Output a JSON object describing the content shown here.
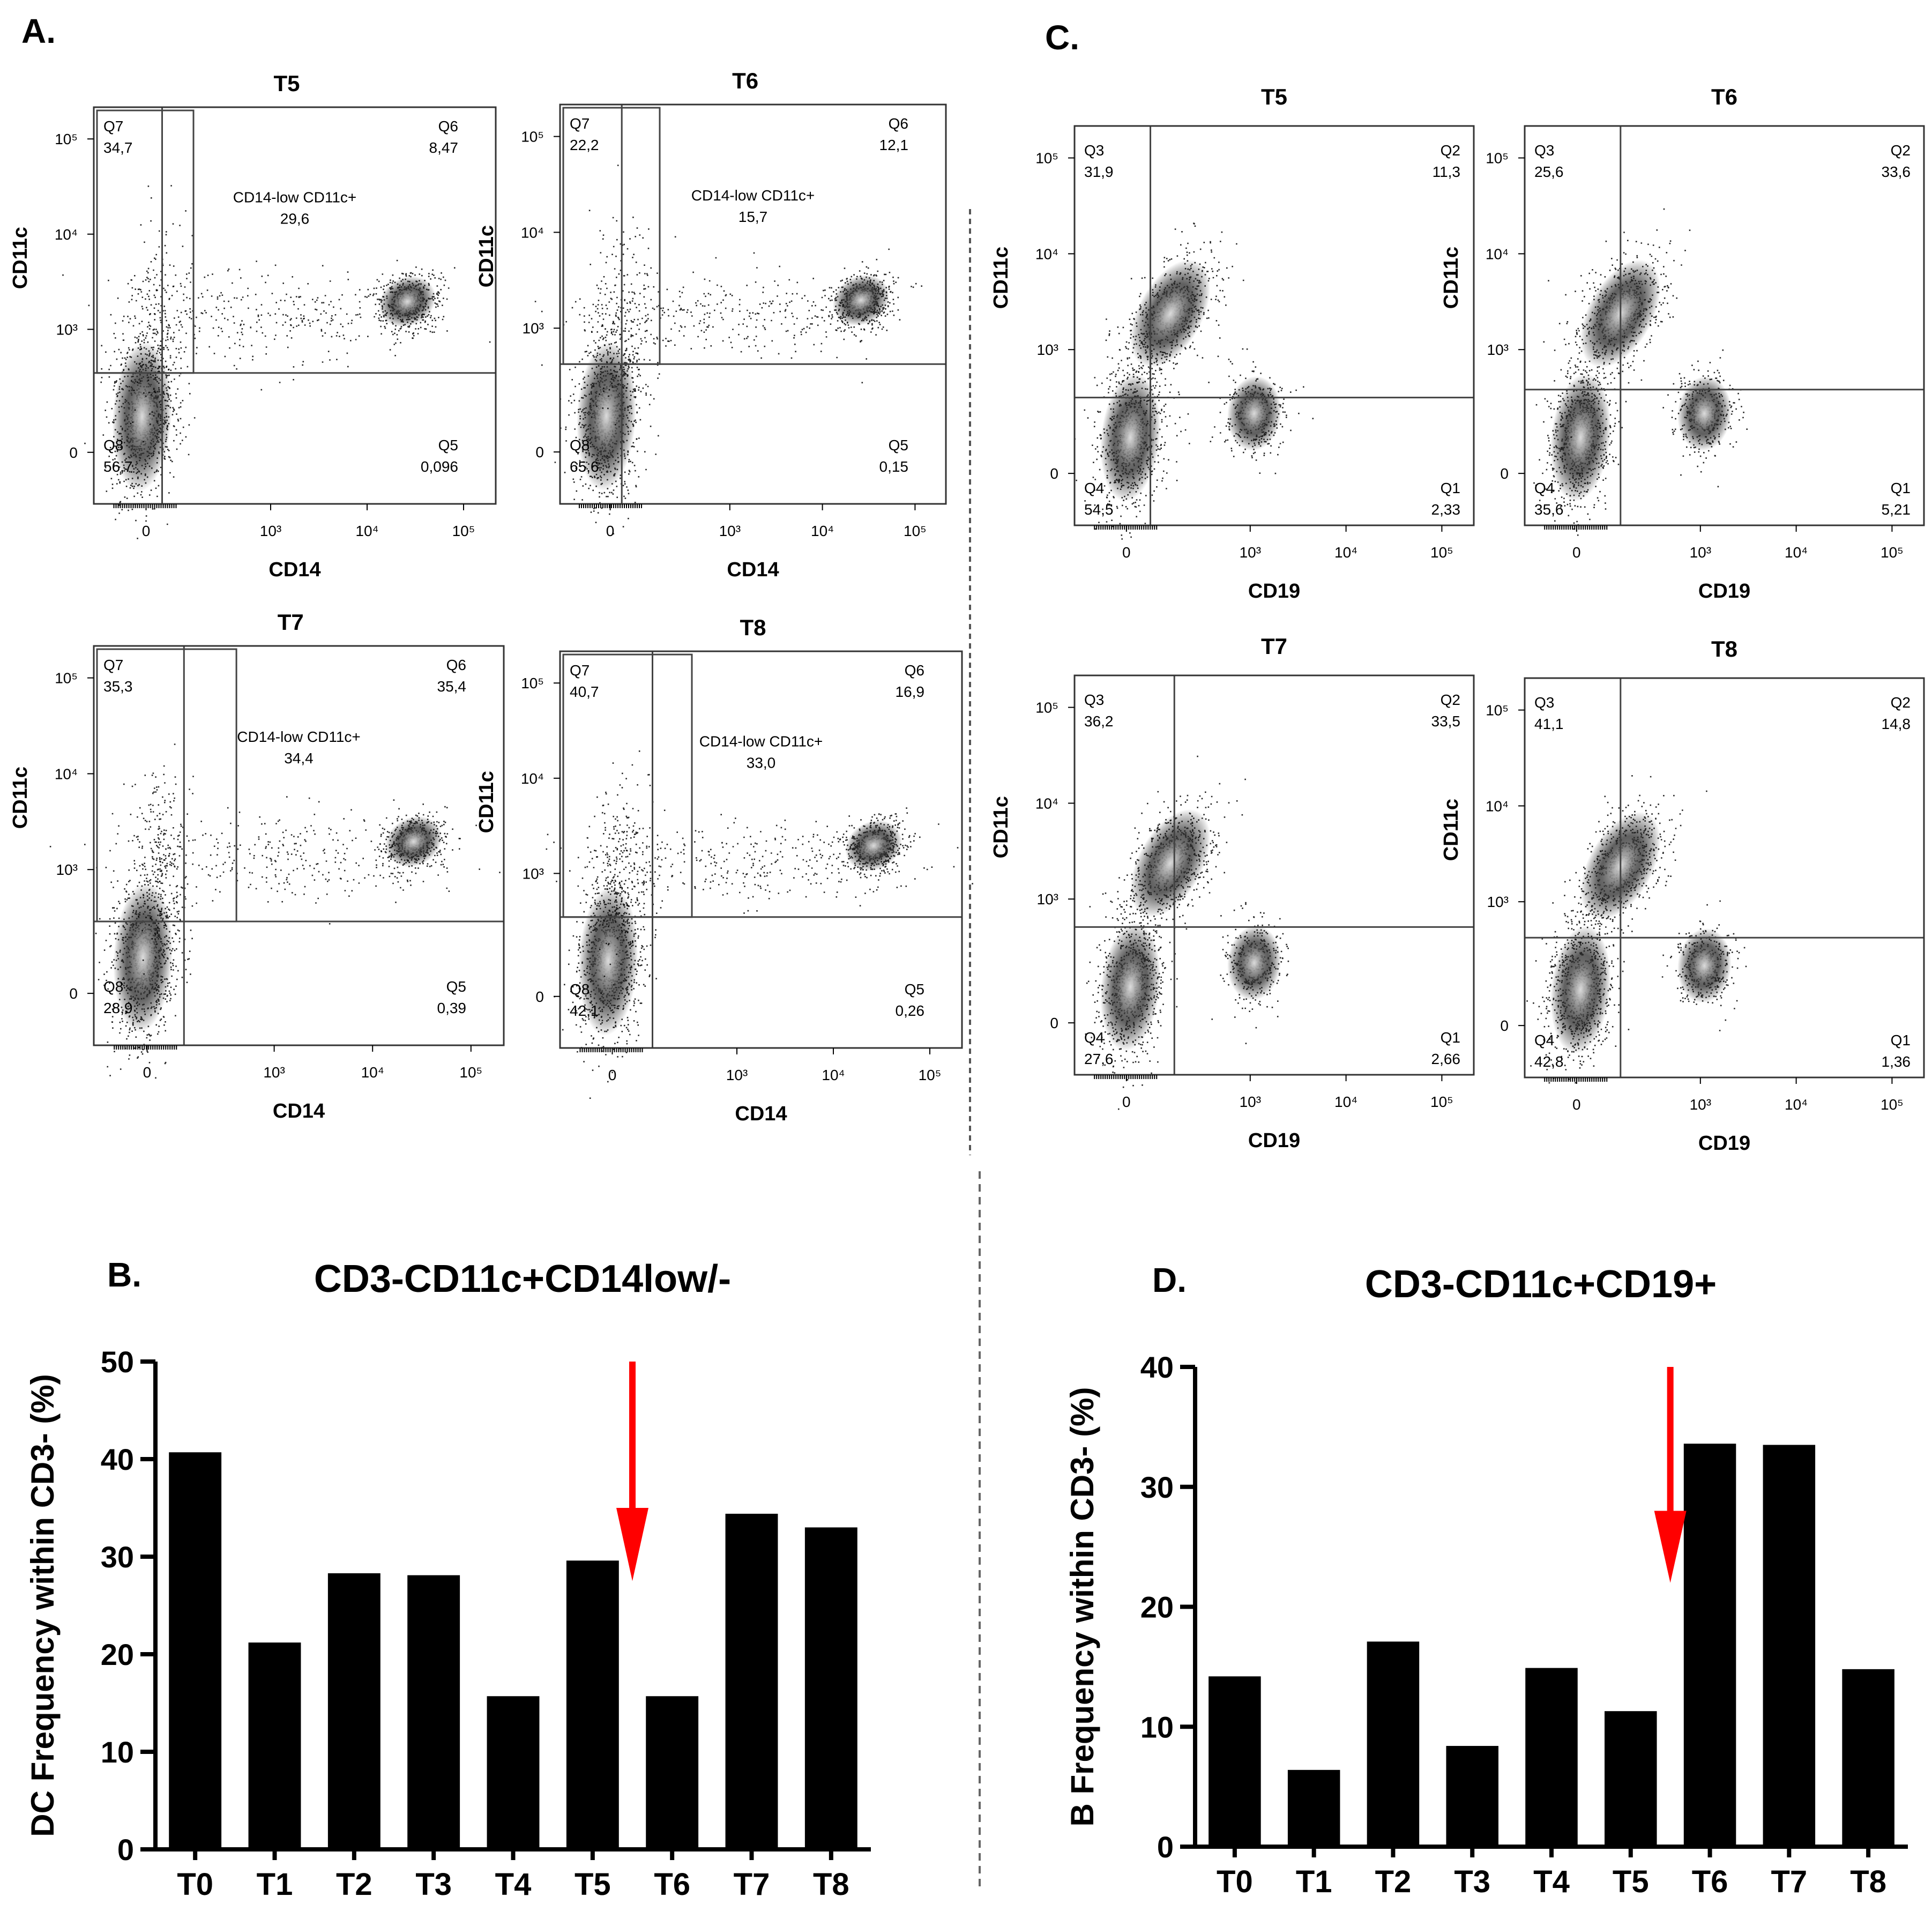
{
  "panels": {
    "a": {
      "letter": "A."
    },
    "b": {
      "letter": "B."
    },
    "c": {
      "letter": "C."
    },
    "d": {
      "letter": "D."
    }
  },
  "flow_a": {
    "xlabel": "CD14",
    "ylabel": "CD11c",
    "x_ticks": [
      "0",
      "10³",
      "10⁴",
      "10⁵"
    ],
    "y_ticks": [
      "0",
      "10³",
      "10⁴",
      "10⁵"
    ],
    "gate_label": "CD14-low CD11c+",
    "plots": [
      {
        "title": "T5",
        "q7": [
          "Q7",
          "34,7"
        ],
        "q6": [
          "Q6",
          "8,47"
        ],
        "gate": "29,6",
        "q8": [
          "Q8",
          "56,7"
        ],
        "q5": [
          "Q5",
          "0,096"
        ]
      },
      {
        "title": "T6",
        "q7": [
          "Q7",
          "22,2"
        ],
        "q6": [
          "Q6",
          "12,1"
        ],
        "gate": "15,7",
        "q8": [
          "Q8",
          "65,6"
        ],
        "q5": [
          "Q5",
          "0,15"
        ]
      },
      {
        "title": "T7",
        "q7": [
          "Q7",
          "35,3"
        ],
        "q6": [
          "Q6",
          "35,4"
        ],
        "gate": "34,4",
        "q8": [
          "Q8",
          "28,9"
        ],
        "q5": [
          "Q5",
          "0,39"
        ]
      },
      {
        "title": "T8",
        "q7": [
          "Q7",
          "40,7"
        ],
        "q6": [
          "Q6",
          "16,9"
        ],
        "gate": "33,0",
        "q8": [
          "Q8",
          "42,1"
        ],
        "q5": [
          "Q5",
          "0,26"
        ]
      }
    ]
  },
  "flow_c": {
    "xlabel": "CD19",
    "ylabel": "CD11c",
    "x_ticks": [
      "0",
      "10³",
      "10⁴",
      "10⁵"
    ],
    "y_ticks": [
      "0",
      "10³",
      "10⁴",
      "10⁵"
    ],
    "plots": [
      {
        "title": "T5",
        "q3": [
          "Q3",
          "31,9"
        ],
        "q2": [
          "Q2",
          "11,3"
        ],
        "q4": [
          "Q4",
          "54,5"
        ],
        "q1": [
          "Q1",
          "2,33"
        ]
      },
      {
        "title": "T6",
        "q3": [
          "Q3",
          "25,6"
        ],
        "q2": [
          "Q2",
          "33,6"
        ],
        "q4": [
          "Q4",
          "35,6"
        ],
        "q1": [
          "Q1",
          "5,21"
        ]
      },
      {
        "title": "T7",
        "q3": [
          "Q3",
          "36,2"
        ],
        "q2": [
          "Q2",
          "33,5"
        ],
        "q4": [
          "Q4",
          "27,6"
        ],
        "q1": [
          "Q1",
          "2,66"
        ]
      },
      {
        "title": "T8",
        "q3": [
          "Q3",
          "41,1"
        ],
        "q2": [
          "Q2",
          "14,8"
        ],
        "q4": [
          "Q4",
          "42,8"
        ],
        "q1": [
          "Q1",
          "1,36"
        ]
      }
    ]
  },
  "chart_data": [
    {
      "type": "bar",
      "title": "CD3-CD11c+CD14low/-",
      "ylabel": "DC Frequency within CD3- (%)",
      "categories": [
        "T0",
        "T1",
        "T2",
        "T3",
        "T4",
        "T5",
        "T6",
        "T7",
        "T8"
      ],
      "values": [
        40.7,
        21.2,
        28.3,
        28.1,
        15.7,
        29.6,
        15.7,
        34.4,
        33.0
      ],
      "ylim": [
        0,
        50
      ],
      "y_ticks": [
        "0",
        "10",
        "20",
        "30",
        "40",
        "50"
      ],
      "bar_color": "#000000",
      "arrow": {
        "color": "#ff0000",
        "between": [
          "T5",
          "T6"
        ]
      }
    },
    {
      "type": "bar",
      "title": "CD3-CD11c+CD19+",
      "ylabel": "B Frequency within CD3- (%)",
      "categories": [
        "T0",
        "T1",
        "T2",
        "T3",
        "T4",
        "T5",
        "T6",
        "T7",
        "T8"
      ],
      "values": [
        14.2,
        6.4,
        17.1,
        8.4,
        14.9,
        11.3,
        33.6,
        33.5,
        14.8
      ],
      "ylim": [
        0,
        40
      ],
      "y_ticks": [
        "0",
        "10",
        "20",
        "30",
        "40"
      ],
      "bar_color": "#000000",
      "arrow": {
        "color": "#ff0000",
        "between": [
          "T5",
          "T6"
        ]
      }
    }
  ]
}
